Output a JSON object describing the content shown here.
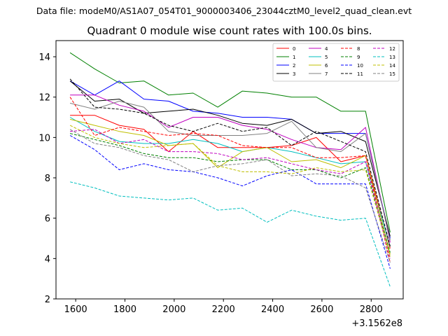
{
  "header": {
    "data_file": "Data file: modeM0/AS1A07_054T01_9000003406_23044cztM0_level2_quad_clean.evt"
  },
  "chart_data": {
    "type": "line",
    "title": "Quadrant 0 module wise count rates with 100.0s bins.",
    "xlabel": "",
    "ylabel": "",
    "x_offset_label": "+3.1562e8",
    "xlim": [
      1520,
      2930
    ],
    "ylim": [
      2,
      14.8
    ],
    "xticks": [
      1600,
      1800,
      2000,
      2200,
      2400,
      2600,
      2800
    ],
    "yticks": [
      2,
      4,
      6,
      8,
      10,
      12,
      14
    ],
    "xtick_labels": [
      "1600",
      "1800",
      "2000",
      "2200",
      "2400",
      "2600",
      "2800"
    ],
    "ytick_labels": [
      "2",
      "4",
      "6",
      "8",
      "10",
      "12",
      "14"
    ],
    "legend_position": "top-right",
    "x": [
      1577,
      1677,
      1777,
      1877,
      1977,
      2077,
      2177,
      2277,
      2377,
      2477,
      2577,
      2677,
      2777,
      2877
    ],
    "series": [
      {
        "name": "0",
        "color": "#ff0000",
        "style": "solid",
        "values": [
          11.1,
          11.1,
          10.6,
          10.4,
          9.3,
          10.3,
          9.5,
          9.5,
          9.5,
          9.6,
          10.0,
          8.8,
          9.1,
          4.5
        ]
      },
      {
        "name": "1",
        "color": "#008000",
        "style": "solid",
        "values": [
          14.2,
          13.4,
          12.7,
          12.8,
          12.1,
          12.2,
          11.5,
          12.3,
          12.2,
          12.0,
          12.0,
          11.3,
          11.3,
          5.3
        ]
      },
      {
        "name": "2",
        "color": "#0000ff",
        "style": "solid",
        "values": [
          12.8,
          12.1,
          12.8,
          11.9,
          11.8,
          11.3,
          11.2,
          11.0,
          11.0,
          10.9,
          10.2,
          10.2,
          10.2,
          5.0
        ]
      },
      {
        "name": "3",
        "color": "#000000",
        "style": "solid",
        "values": [
          12.8,
          11.8,
          11.9,
          11.2,
          11.3,
          11.4,
          11.1,
          10.7,
          10.6,
          10.9,
          10.2,
          10.3,
          9.8,
          5.1
        ]
      },
      {
        "name": "4",
        "color": "#bf00bf",
        "style": "solid",
        "values": [
          12.1,
          12.1,
          11.6,
          11.3,
          10.5,
          11.0,
          11.0,
          10.6,
          10.4,
          9.9,
          9.5,
          9.4,
          10.5,
          4.8
        ]
      },
      {
        "name": "5",
        "color": "#00bfbf",
        "style": "solid",
        "values": [
          11.0,
          10.3,
          9.8,
          9.7,
          9.7,
          9.9,
          9.7,
          9.3,
          9.5,
          9.3,
          9.0,
          8.7,
          8.8,
          4.6
        ]
      },
      {
        "name": "6",
        "color": "#bfbf00",
        "style": "solid",
        "values": [
          10.9,
          10.6,
          10.3,
          10.1,
          9.6,
          9.7,
          8.5,
          9.3,
          9.5,
          8.8,
          8.9,
          8.5,
          9.1,
          4.2
        ]
      },
      {
        "name": "7",
        "color": "#808080",
        "style": "solid",
        "values": [
          11.7,
          11.4,
          11.8,
          11.5,
          10.3,
          10.1,
          10.1,
          10.1,
          10.2,
          10.8,
          9.5,
          9.3,
          10.2,
          4.9
        ]
      },
      {
        "name": "8",
        "color": "#ff0000",
        "style": "dashed",
        "values": [
          12.0,
          10.1,
          10.5,
          10.3,
          10.1,
          10.2,
          10.1,
          9.6,
          9.5,
          9.5,
          9.0,
          9.0,
          9.1,
          3.8
        ]
      },
      {
        "name": "9",
        "color": "#008000",
        "style": "dashed",
        "values": [
          10.2,
          9.9,
          9.6,
          9.2,
          9.0,
          9.0,
          8.8,
          8.9,
          8.9,
          8.4,
          8.4,
          8.0,
          8.5,
          4.3
        ]
      },
      {
        "name": "10",
        "color": "#0000ff",
        "style": "dashed",
        "values": [
          10.1,
          9.4,
          8.4,
          8.7,
          8.4,
          8.3,
          8.0,
          7.6,
          8.1,
          8.4,
          7.7,
          7.7,
          7.7,
          3.5
        ]
      },
      {
        "name": "11",
        "color": "#000000",
        "style": "dashed",
        "values": [
          12.9,
          11.5,
          11.4,
          11.2,
          10.6,
          10.3,
          10.7,
          10.3,
          10.5,
          9.6,
          10.3,
          9.8,
          9.3,
          4.6
        ]
      },
      {
        "name": "12",
        "color": "#bf00bf",
        "style": "dashed",
        "values": [
          10.3,
          10.4,
          9.7,
          9.9,
          9.3,
          9.3,
          9.2,
          8.9,
          9.0,
          8.7,
          8.4,
          8.2,
          8.8,
          4.0
        ]
      },
      {
        "name": "13",
        "color": "#00bfbf",
        "style": "dashed",
        "values": [
          7.8,
          7.5,
          7.1,
          7.0,
          6.9,
          7.0,
          6.4,
          6.5,
          5.8,
          6.4,
          6.1,
          5.9,
          6.0,
          2.6
        ]
      },
      {
        "name": "14",
        "color": "#bfbf00",
        "style": "dashed",
        "values": [
          10.6,
          10.0,
          9.7,
          9.5,
          9.6,
          9.7,
          8.6,
          8.3,
          8.3,
          8.2,
          8.5,
          8.3,
          8.4,
          4.1
        ]
      },
      {
        "name": "15",
        "color": "#808080",
        "style": "dashed",
        "values": [
          10.4,
          9.7,
          9.5,
          9.1,
          8.9,
          8.3,
          8.6,
          8.7,
          8.9,
          8.1,
          8.2,
          8.1,
          7.5,
          3.8
        ]
      }
    ]
  }
}
